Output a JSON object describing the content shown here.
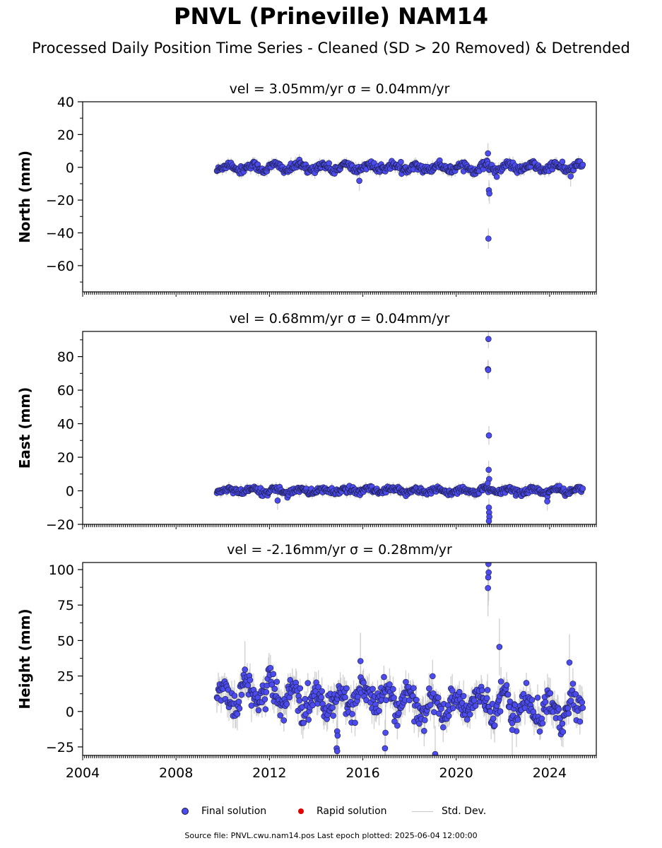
{
  "title": "PNVL (Prineville) NAM14",
  "subtitle": "Processed Daily Position Time Series - Cleaned (SD > 20 Removed) & Detrended",
  "footer": "Source file: PNVL.cwu.nam14.pos  Last epoch plotted: 2025-06-04 12:00:00",
  "legend": {
    "final": "Final solution",
    "rapid": "Rapid solution",
    "std": "Std. Dev."
  },
  "colors": {
    "final": "#4b4bf0",
    "final_edge": "#1a1a3a",
    "rapid": "#e00000",
    "std": "#c8c8c8"
  },
  "chart_data": [
    {
      "type": "scatter",
      "title": "vel = 3.05mm/yr   σ = 0.04mm/yr",
      "ylabel": "North (mm)",
      "xlim": [
        2004,
        2026
      ],
      "ylim": [
        -76,
        40
      ],
      "x_ticks": [
        2004,
        2008,
        2012,
        2016,
        2020,
        2024
      ],
      "y_ticks": [
        -60,
        -40,
        -20,
        0,
        20,
        40
      ],
      "data_start": 2009.75,
      "data_end": 2025.42,
      "baseline": {
        "amp": 1.8,
        "noise": 1.2,
        "std": 2.5
      },
      "outliers": [
        [
          2015.85,
          -8.2
        ],
        [
          2021.38,
          -43.5
        ],
        [
          2021.4,
          -14.0
        ],
        [
          2021.42,
          -16.0
        ],
        [
          2021.36,
          8.5
        ],
        [
          2024.9,
          -5.5
        ]
      ]
    },
    {
      "type": "scatter",
      "title": "vel = 0.68mm/yr   σ = 0.04mm/yr",
      "ylabel": "East (mm)",
      "xlim": [
        2004,
        2026
      ],
      "ylim": [
        -20,
        95
      ],
      "x_ticks": [
        2004,
        2008,
        2012,
        2016,
        2020,
        2024
      ],
      "y_ticks": [
        -20,
        0,
        20,
        40,
        60,
        80
      ],
      "data_start": 2009.75,
      "data_end": 2025.42,
      "baseline": {
        "amp": 1.2,
        "noise": 1.0,
        "std": 2.2
      },
      "outliers": [
        [
          2021.38,
          90.5
        ],
        [
          2021.36,
          72.5
        ],
        [
          2021.37,
          72.0
        ],
        [
          2021.4,
          33.0
        ],
        [
          2021.39,
          12.5
        ],
        [
          2021.41,
          7.0
        ],
        [
          2021.35,
          4.5
        ],
        [
          2021.4,
          -10.0
        ],
        [
          2021.41,
          -13.0
        ],
        [
          2021.42,
          -15.5
        ],
        [
          2021.4,
          -18.0
        ],
        [
          2012.35,
          -5.8
        ],
        [
          2023.9,
          -6.3
        ]
      ]
    },
    {
      "type": "scatter",
      "title": "vel = -2.16mm/yr   σ = 0.28mm/yr",
      "ylabel": "Height (mm)",
      "xlim": [
        2004,
        2026
      ],
      "ylim": [
        -31,
        105
      ],
      "x_ticks": [
        2004,
        2008,
        2012,
        2016,
        2020,
        2024
      ],
      "x_tick_labels": [
        "2004",
        "2008",
        "2012",
        "2016",
        "2020",
        "2024"
      ],
      "y_ticks": [
        -25,
        0,
        25,
        50,
        75,
        100
      ],
      "data_start": 2009.75,
      "data_end": 2025.42,
      "baseline": {
        "amp": 8.0,
        "noise": 5.0,
        "std": 8.0,
        "offset": 12.0,
        "trend_end": 2.0
      },
      "outliers": [
        [
          2021.38,
          104.0
        ],
        [
          2021.39,
          98.0
        ],
        [
          2021.37,
          94.5
        ],
        [
          2021.36,
          87.0
        ],
        [
          2021.85,
          45.5
        ],
        [
          2010.95,
          29.5
        ],
        [
          2014.9,
          -14.0
        ],
        [
          2014.92,
          -17.0
        ],
        [
          2014.88,
          -26.0
        ],
        [
          2014.9,
          -28.0
        ],
        [
          2016.95,
          -26.0
        ],
        [
          2016.97,
          -15.0
        ],
        [
          2019.1,
          -30.0
        ],
        [
          2022.4,
          -13.0
        ],
        [
          2024.85,
          34.5
        ],
        [
          2015.9,
          35.5
        ]
      ]
    }
  ]
}
